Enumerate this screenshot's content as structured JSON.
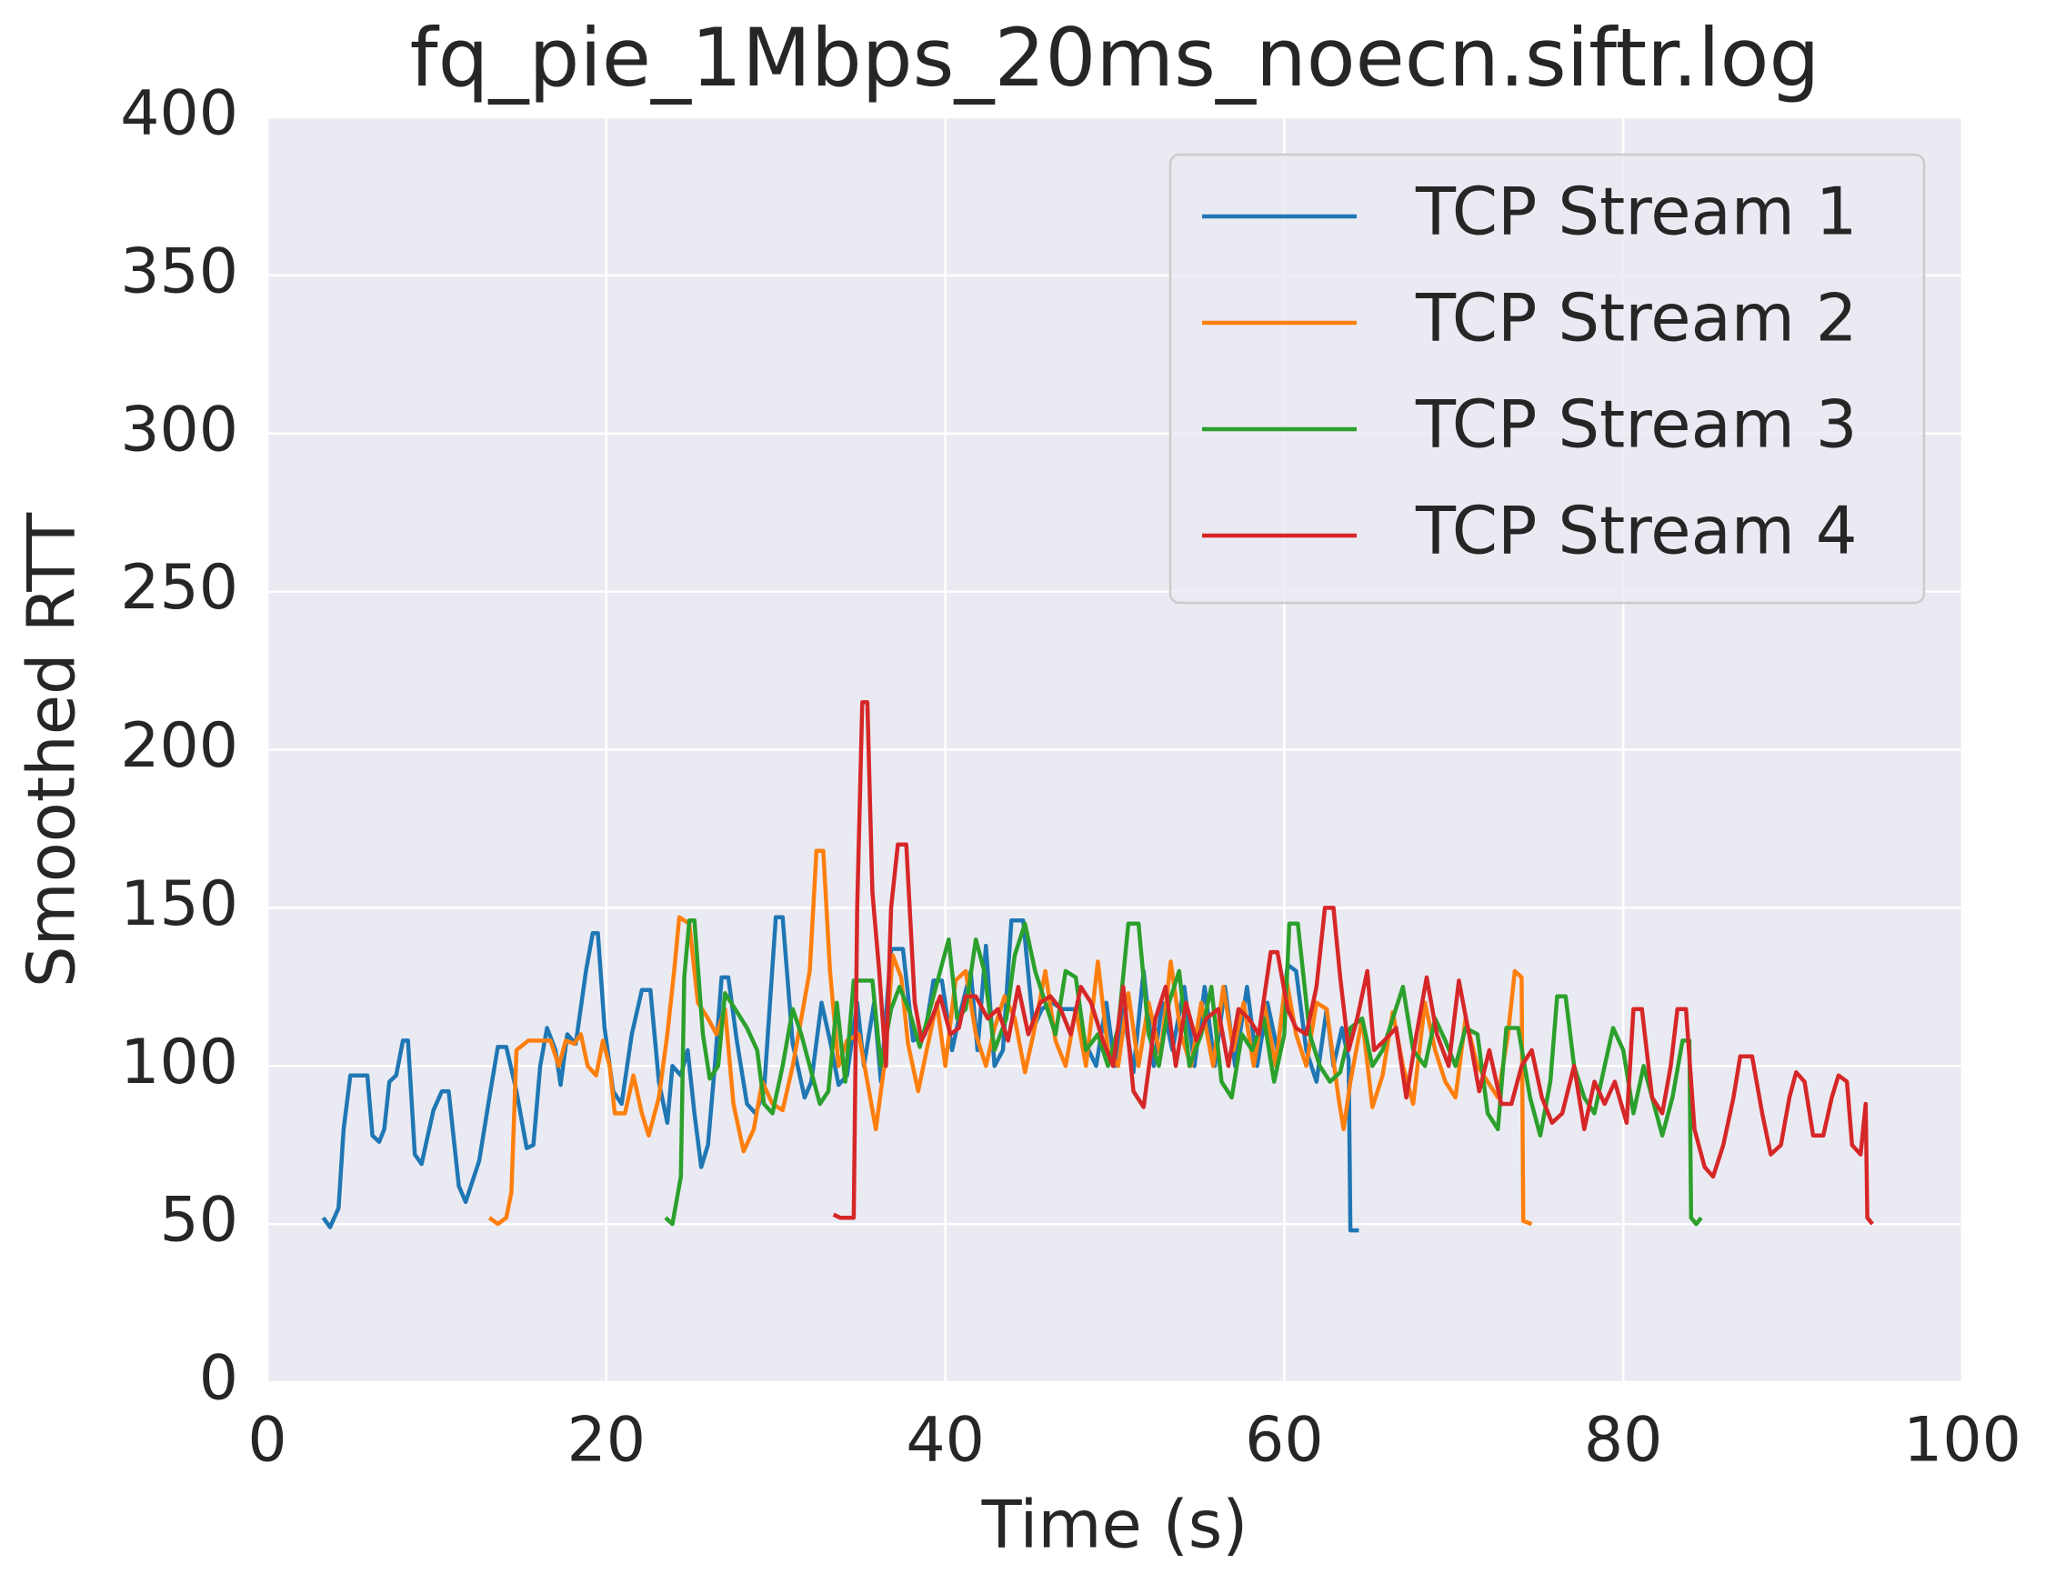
{
  "chart_data": {
    "type": "line",
    "title": "fq_pie_1Mbps_20ms_noecn.siftr.log",
    "x_label": "Time (s)",
    "y_label": "Smoothed RTT",
    "xlim": [
      0,
      100
    ],
    "xticks": [
      0,
      20,
      40,
      60,
      80,
      100
    ],
    "ylim": [
      0,
      400
    ],
    "yticks": [
      0,
      50,
      100,
      150,
      200,
      250,
      300,
      350,
      400
    ],
    "grid": true,
    "legend": "upper right",
    "series": [
      {
        "name": "TCP Stream 1",
        "color": "#1f77b4",
        "x": [
          3.3,
          3.7,
          4.2,
          4.5,
          4.9,
          5.9,
          6.2,
          6.6,
          6.9,
          7.2,
          7.6,
          8.0,
          8.3,
          8.7,
          9.1,
          9.8,
          10.3,
          10.7,
          11.3,
          11.7,
          12.5,
          13.1,
          13.6,
          14.1,
          14.7,
          15.3,
          15.7,
          16.1,
          16.5,
          17.0,
          17.3,
          17.7,
          18.2,
          18.8,
          19.2,
          19.5,
          19.9,
          20.4,
          20.9,
          21.5,
          22.1,
          22.6,
          23.1,
          23.6,
          23.9,
          24.4,
          24.8,
          25.2,
          25.6,
          26.0,
          26.4,
          26.8,
          27.2,
          27.7,
          28.3,
          28.8,
          29.3,
          30.0,
          30.4,
          31.0,
          31.7,
          32.1,
          32.7,
          33.2,
          33.7,
          34.2,
          34.8,
          35.2,
          35.8,
          36.2,
          36.8,
          37.5,
          38.1,
          38.8,
          39.3,
          39.8,
          40.4,
          40.8,
          41.5,
          41.9,
          42.4,
          42.9,
          43.4,
          43.9,
          44.6,
          45.2,
          45.7,
          46.3,
          46.9,
          47.6,
          48.2,
          48.9,
          49.5,
          50.0,
          50.5,
          51.1,
          51.7,
          52.3,
          52.8,
          53.4,
          54.1,
          54.7,
          55.3,
          55.9,
          56.5,
          57.1,
          57.8,
          58.4,
          59.0,
          59.6,
          60.2,
          60.7,
          61.3,
          61.9,
          62.5,
          62.9,
          63.4,
          63.8,
          63.9,
          64.4
        ],
        "values": [
          52,
          49,
          55,
          80,
          97,
          97,
          78,
          76,
          80,
          95,
          97,
          108,
          108,
          72,
          69,
          86,
          92,
          92,
          62,
          57,
          70,
          90,
          106,
          106,
          92,
          74,
          75,
          100,
          112,
          105,
          94,
          110,
          107,
          130,
          142,
          142,
          112,
          92,
          88,
          110,
          124,
          124,
          95,
          82,
          100,
          97,
          105,
          85,
          68,
          75,
          100,
          128,
          128,
          108,
          88,
          85,
          92,
          147,
          147,
          107,
          90,
          95,
          120,
          108,
          94,
          97,
          120,
          100,
          120,
          95,
          137,
          137,
          108,
          110,
          127,
          127,
          105,
          115,
          130,
          105,
          138,
          100,
          105,
          146,
          146,
          112,
          118,
          120,
          118,
          118,
          108,
          100,
          120,
          100,
          118,
          98,
          130,
          100,
          120,
          105,
          125,
          100,
          125,
          100,
          125,
          100,
          125,
          100,
          120,
          105,
          132,
          130,
          105,
          95,
          118,
          100,
          112,
          102,
          48,
          48
        ]
      },
      {
        "name": "TCP Stream 2",
        "color": "#ff7f0e",
        "x": [
          13.1,
          13.6,
          14.1,
          14.4,
          14.7,
          15.4,
          16.7,
          17.2,
          17.6,
          18.1,
          18.5,
          18.9,
          19.4,
          19.8,
          20.2,
          20.5,
          21.1,
          21.6,
          22.1,
          22.5,
          23.1,
          23.6,
          24.0,
          24.3,
          24.9,
          25.4,
          26.0,
          26.5,
          27.0,
          27.5,
          28.1,
          28.7,
          29.2,
          29.8,
          30.4,
          31.0,
          31.5,
          32.0,
          32.4,
          32.8,
          33.2,
          33.7,
          34.2,
          34.9,
          35.4,
          35.9,
          36.4,
          36.9,
          37.4,
          37.8,
          38.4,
          38.9,
          39.5,
          40.0,
          40.6,
          41.2,
          41.8,
          42.4,
          42.9,
          43.5,
          44.1,
          44.7,
          45.2,
          45.9,
          46.5,
          47.1,
          47.7,
          48.3,
          49.0,
          49.6,
          50.2,
          50.8,
          51.4,
          52.0,
          52.7,
          53.3,
          53.9,
          54.5,
          55.1,
          55.8,
          56.4,
          57.0,
          57.6,
          58.2,
          58.8,
          59.5,
          60.1,
          60.7,
          61.3,
          61.9,
          62.5,
          63.2,
          63.5,
          63.9,
          64.6,
          65.2,
          65.8,
          66.4,
          67.0,
          67.6,
          68.3,
          68.9,
          69.5,
          70.1,
          70.7,
          71.4,
          72.0,
          72.6,
          73.2,
          73.6,
          74.0,
          74.1,
          74.6
        ],
        "values": [
          52,
          50,
          52,
          60,
          105,
          108,
          108,
          100,
          108,
          107,
          110,
          100,
          97,
          108,
          100,
          85,
          85,
          97,
          85,
          78,
          90,
          110,
          130,
          147,
          145,
          120,
          115,
          110,
          118,
          88,
          73,
          80,
          95,
          88,
          86,
          100,
          115,
          130,
          168,
          168,
          130,
          100,
          108,
          110,
          95,
          80,
          100,
          135,
          128,
          107,
          92,
          105,
          120,
          100,
          127,
          130,
          110,
          100,
          112,
          122,
          115,
          98,
          110,
          130,
          108,
          100,
          118,
          100,
          133,
          105,
          100,
          123,
          100,
          120,
          103,
          133,
          110,
          100,
          120,
          100,
          125,
          105,
          120,
          100,
          120,
          100,
          128,
          110,
          100,
          120,
          118,
          90,
          80,
          95,
          115,
          87,
          97,
          117,
          100,
          88,
          120,
          105,
          95,
          90,
          115,
          100,
          95,
          90,
          110,
          130,
          128,
          51,
          50
        ]
      },
      {
        "name": "TCP Stream 3",
        "color": "#2ca02c",
        "x": [
          23.5,
          23.9,
          24.4,
          24.6,
          24.9,
          25.2,
          25.7,
          26.1,
          26.6,
          27.0,
          27.6,
          28.3,
          28.9,
          29.3,
          29.8,
          30.4,
          31.0,
          31.5,
          32.0,
          32.6,
          33.1,
          33.6,
          34.1,
          34.6,
          35.7,
          36.2,
          36.8,
          37.3,
          37.9,
          38.5,
          39.1,
          39.6,
          40.2,
          40.7,
          41.2,
          41.8,
          42.3,
          42.9,
          43.6,
          44.1,
          44.7,
          45.3,
          45.9,
          46.5,
          47.1,
          47.7,
          48.3,
          49.0,
          49.6,
          50.2,
          50.8,
          51.4,
          52.0,
          52.6,
          53.2,
          53.8,
          54.4,
          55.1,
          55.7,
          56.3,
          56.9,
          57.5,
          58.1,
          58.8,
          59.4,
          60.0,
          60.3,
          60.8,
          61.5,
          62.1,
          62.7,
          63.3,
          63.9,
          64.6,
          65.2,
          65.8,
          66.4,
          67.0,
          67.6,
          68.3,
          68.9,
          69.5,
          70.1,
          70.7,
          71.4,
          72.0,
          72.6,
          73.1,
          73.8,
          74.5,
          75.1,
          75.7,
          76.1,
          76.6,
          77.1,
          77.7,
          78.3,
          78.9,
          79.4,
          80.0,
          80.6,
          81.2,
          81.7,
          82.3,
          82.9,
          83.5,
          83.9,
          84.0,
          84.3,
          84.6
        ],
        "values": [
          52,
          50,
          65,
          128,
          146,
          146,
          110,
          96,
          100,
          123,
          118,
          112,
          105,
          88,
          85,
          100,
          118,
          110,
          100,
          88,
          92,
          120,
          95,
          127,
          127,
          100,
          118,
          125,
          117,
          106,
          118,
          128,
          140,
          115,
          118,
          140,
          130,
          105,
          115,
          135,
          145,
          130,
          120,
          110,
          130,
          128,
          105,
          110,
          100,
          112,
          145,
          145,
          110,
          100,
          120,
          130,
          100,
          110,
          125,
          95,
          90,
          110,
          105,
          115,
          95,
          110,
          145,
          145,
          110,
          100,
          95,
          98,
          112,
          115,
          100,
          105,
          115,
          125,
          105,
          100,
          115,
          108,
          100,
          112,
          110,
          85,
          80,
          112,
          112,
          90,
          78,
          95,
          122,
          122,
          100,
          90,
          85,
          100,
          112,
          105,
          85,
          100,
          90,
          78,
          90,
          108,
          108,
          52,
          50,
          52
        ]
      },
      {
        "name": "TCP Stream 4",
        "color": "#d62728",
        "x": [
          33.4,
          33.8,
          34.6,
          34.8,
          35.1,
          35.4,
          35.7,
          36.1,
          36.5,
          36.8,
          37.2,
          37.7,
          38.2,
          38.6,
          39.2,
          39.7,
          40.3,
          40.8,
          41.2,
          41.8,
          42.5,
          43.1,
          43.7,
          44.3,
          44.9,
          45.6,
          46.2,
          46.8,
          47.4,
          48.0,
          48.6,
          49.3,
          49.9,
          50.5,
          51.1,
          51.7,
          52.4,
          53.0,
          53.6,
          54.2,
          54.8,
          55.4,
          56.1,
          56.7,
          57.3,
          57.9,
          58.5,
          59.2,
          59.6,
          60.2,
          60.7,
          61.3,
          61.9,
          62.4,
          62.9,
          63.3,
          63.8,
          64.3,
          64.9,
          65.3,
          65.9,
          66.6,
          67.2,
          67.8,
          68.4,
          69.0,
          69.7,
          70.3,
          70.9,
          71.5,
          72.1,
          72.8,
          73.4,
          74.0,
          74.6,
          75.2,
          75.8,
          76.4,
          77.1,
          77.7,
          78.3,
          78.9,
          79.5,
          80.2,
          80.6,
          81.1,
          81.7,
          82.3,
          82.8,
          83.2,
          83.7,
          84.2,
          84.8,
          85.3,
          85.9,
          86.5,
          86.9,
          87.6,
          88.2,
          88.7,
          89.3,
          89.8,
          90.2,
          90.7,
          91.2,
          91.8,
          92.3,
          92.7,
          93.2,
          93.5,
          94.0,
          94.3,
          94.4,
          94.7
        ],
        "values": [
          53,
          52,
          52,
          150,
          215,
          215,
          155,
          130,
          100,
          150,
          170,
          170,
          120,
          108,
          115,
          122,
          110,
          112,
          122,
          122,
          115,
          118,
          108,
          125,
          110,
          120,
          122,
          118,
          110,
          125,
          120,
          108,
          100,
          125,
          92,
          87,
          115,
          125,
          100,
          120,
          108,
          115,
          118,
          100,
          118,
          115,
          110,
          136,
          136,
          118,
          112,
          110,
          125,
          150,
          150,
          128,
          105,
          115,
          130,
          105,
          108,
          112,
          90,
          110,
          128,
          110,
          100,
          127,
          110,
          92,
          105,
          88,
          88,
          100,
          105,
          90,
          82,
          85,
          100,
          80,
          95,
          88,
          95,
          82,
          118,
          118,
          90,
          85,
          100,
          118,
          118,
          80,
          68,
          65,
          75,
          90,
          103,
          103,
          85,
          72,
          75,
          90,
          98,
          95,
          78,
          78,
          90,
          97,
          95,
          75,
          72,
          88,
          52,
          50
        ]
      }
    ]
  }
}
